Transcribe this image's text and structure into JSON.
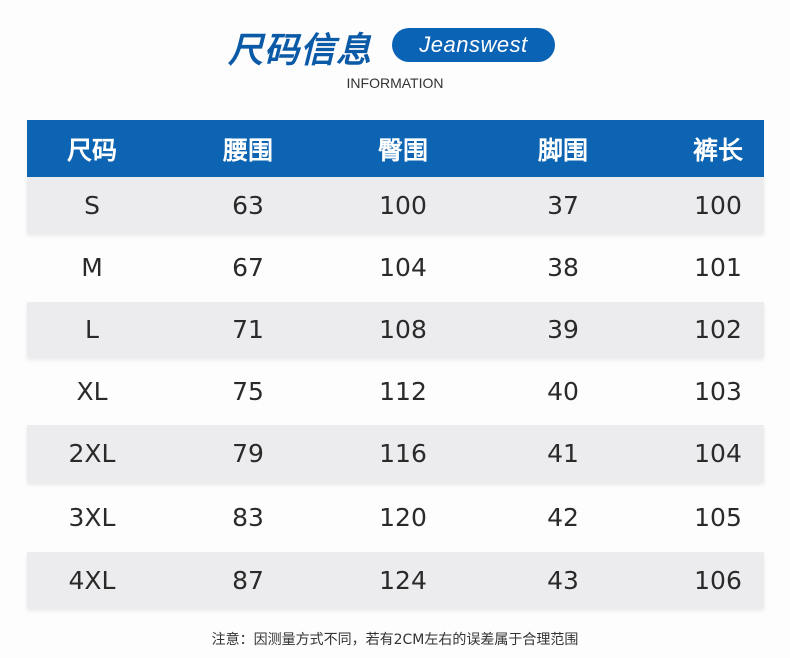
{
  "header": {
    "title": "尺码信息",
    "brand_badge": "Jeanswest",
    "subtitle": "INFORMATION"
  },
  "table": {
    "columns": [
      "尺码",
      "腰围",
      "臀围",
      "脚围",
      "裤长"
    ],
    "rows": [
      [
        "S",
        "63",
        "100",
        "37",
        "100"
      ],
      [
        "M",
        "67",
        "104",
        "38",
        "101"
      ],
      [
        "L",
        "71",
        "108",
        "39",
        "102"
      ],
      [
        "XL",
        "75",
        "112",
        "40",
        "103"
      ],
      [
        "2XL",
        "79",
        "116",
        "41",
        "104"
      ],
      [
        "3XL",
        "83",
        "120",
        "42",
        "105"
      ],
      [
        "4XL",
        "87",
        "124",
        "43",
        "106"
      ]
    ]
  },
  "note": "注意：因测量方式不同，若有2CM左右的误差属于合理范围",
  "colors": {
    "accent": "#0c64b2",
    "row_alt": "#ececee"
  }
}
